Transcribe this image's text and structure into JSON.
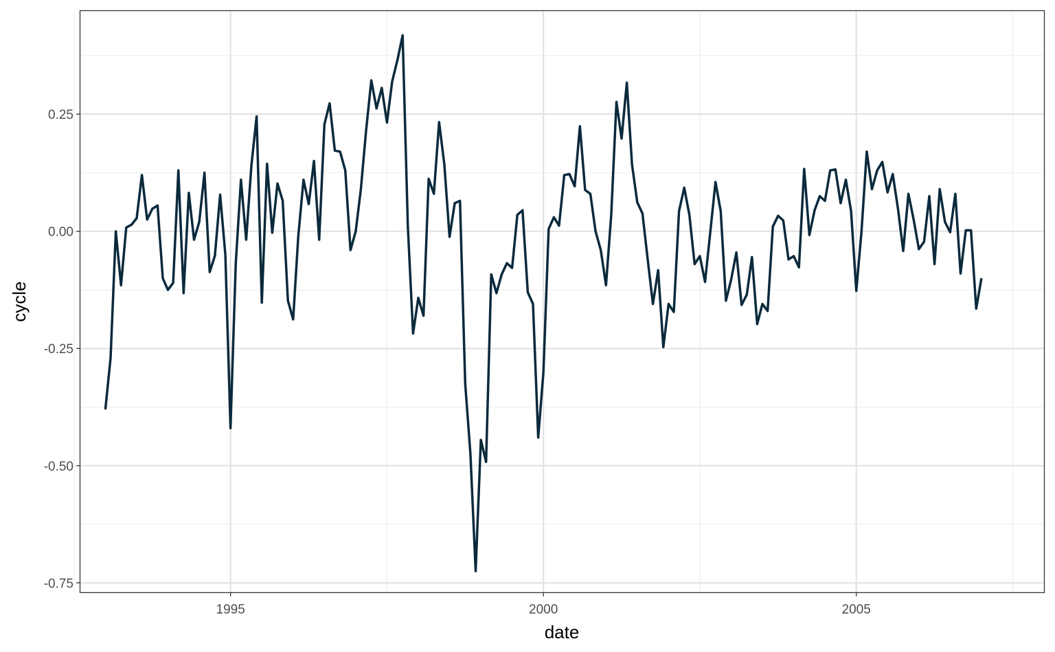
{
  "chart_data": {
    "type": "line",
    "title": "",
    "xlabel": "date",
    "ylabel": "cycle",
    "xlim": [
      1992.6,
      2008.0
    ],
    "ylim": [
      -0.77,
      0.47
    ],
    "x_ticks": [
      1995,
      2000,
      2005
    ],
    "x_tick_labels": [
      "1995",
      "2000",
      "2005"
    ],
    "y_ticks": [
      0.25,
      0.0,
      -0.25,
      -0.5,
      -0.75
    ],
    "y_tick_labels": [
      "0.25",
      "0.00",
      "-0.25",
      "-0.50",
      "-0.75"
    ],
    "x_minor_ticks": [
      1992.5,
      1997.5,
      2002.5,
      2007.5
    ],
    "y_minor_ticks": [
      0.375,
      0.125,
      -0.125,
      -0.375,
      -0.625
    ],
    "grid": true,
    "line_color": "#0b2a3c",
    "series": [
      {
        "x_start": 1993.0,
        "x_step": 0.08333333,
        "values": [
          -0.38,
          -0.27,
          0.0,
          -0.115,
          0.008,
          0.014,
          0.028,
          0.12,
          0.025,
          0.048,
          0.055,
          -0.1,
          -0.125,
          -0.11,
          0.13,
          -0.132,
          0.082,
          -0.018,
          0.02,
          0.125,
          -0.087,
          -0.052,
          0.078,
          -0.05,
          -0.42,
          -0.07,
          0.11,
          -0.018,
          0.14,
          0.245,
          -0.152,
          0.144,
          -0.003,
          0.102,
          0.065,
          -0.148,
          -0.188,
          -0.01,
          0.11,
          0.058,
          0.15,
          -0.018,
          0.228,
          0.273,
          0.172,
          0.17,
          0.13,
          -0.04,
          0.0,
          0.09,
          0.215,
          0.322,
          0.262,
          0.306,
          0.232,
          0.32,
          0.365,
          0.418,
          0.01,
          -0.218,
          -0.142,
          -0.18,
          0.112,
          0.08,
          0.233,
          0.143,
          -0.012,
          0.06,
          0.065,
          -0.325,
          -0.475,
          -0.725,
          -0.445,
          -0.492,
          -0.092,
          -0.132,
          -0.092,
          -0.068,
          -0.078,
          0.035,
          0.045,
          -0.13,
          -0.155,
          -0.44,
          -0.3,
          0.005,
          0.03,
          0.012,
          0.12,
          0.122,
          0.096,
          0.224,
          0.088,
          0.08,
          0.0,
          -0.04,
          -0.115,
          0.035,
          0.276,
          0.198,
          0.317,
          0.142,
          0.062,
          0.038,
          -0.06,
          -0.155,
          -0.083,
          -0.247,
          -0.155,
          -0.172,
          0.043,
          0.093,
          0.035,
          -0.07,
          -0.053,
          -0.108,
          -0.002,
          0.105,
          0.043,
          -0.148,
          -0.103,
          -0.045,
          -0.157,
          -0.135,
          -0.055,
          -0.198,
          -0.155,
          -0.17,
          0.01,
          0.033,
          0.023,
          -0.06,
          -0.053,
          -0.077,
          0.133,
          -0.008,
          0.045,
          0.075,
          0.065,
          0.13,
          0.132,
          0.06,
          0.11,
          0.043,
          -0.127,
          0.0,
          0.17,
          0.09,
          0.13,
          0.148,
          0.083,
          0.122,
          0.048,
          -0.042,
          0.08,
          0.025,
          -0.038,
          -0.022,
          0.075,
          -0.07,
          0.09,
          0.02,
          -0.002,
          0.08,
          -0.09,
          0.002,
          0.002,
          -0.165,
          -0.1
        ]
      }
    ]
  }
}
